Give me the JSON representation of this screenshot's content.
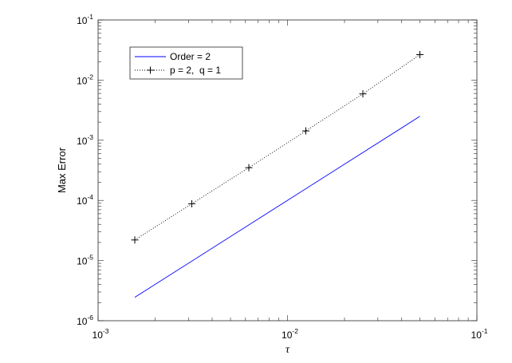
{
  "chart_data": {
    "type": "line",
    "title": "",
    "xlabel": "τ",
    "ylabel": "Max Error",
    "xscale": "log",
    "yscale": "log",
    "xlim": [
      0.001,
      0.1
    ],
    "ylim": [
      1e-06,
      0.1
    ],
    "x_ticks": [
      0.001,
      0.01,
      0.1
    ],
    "x_tick_labels": [
      {
        "base": "10",
        "exp": "-3"
      },
      {
        "base": "10",
        "exp": "-2"
      },
      {
        "base": "10",
        "exp": "-1"
      }
    ],
    "y_ticks": [
      1e-06,
      1e-05,
      0.0001,
      0.001,
      0.01,
      0.1
    ],
    "y_tick_labels": [
      {
        "base": "10",
        "exp": "-6"
      },
      {
        "base": "10",
        "exp": "-5"
      },
      {
        "base": "10",
        "exp": "-4"
      },
      {
        "base": "10",
        "exp": "-3"
      },
      {
        "base": "10",
        "exp": "-2"
      },
      {
        "base": "10",
        "exp": "-1"
      }
    ],
    "grid": false,
    "legend_position": "top-left",
    "series": [
      {
        "name": "Order = 2",
        "color": "#0000ff",
        "style": "solid",
        "marker": "none",
        "x": [
          0.0015625,
          0.05
        ],
        "y": [
          2.45e-06,
          0.0025
        ]
      },
      {
        "name": "p = 2,  q = 1",
        "color": "#000000",
        "style": "dotted",
        "marker": "plus",
        "x": [
          0.0015625,
          0.003125,
          0.00625,
          0.0125,
          0.025,
          0.05
        ],
        "y": [
          2.2e-05,
          8.8e-05,
          0.00035,
          0.00143,
          0.0059,
          0.0265
        ]
      }
    ]
  }
}
